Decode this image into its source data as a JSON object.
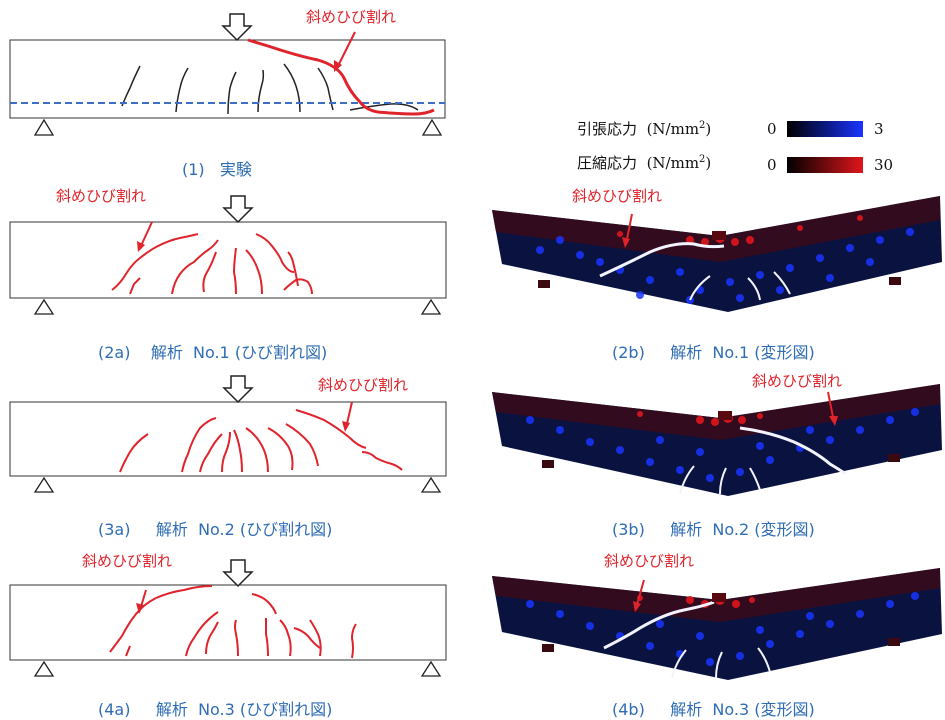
{
  "captions": {
    "c1": "(1)   実験",
    "c2a": "(2a)    解析  No.1 (ひび割れ図)",
    "c2b": "(2b)     解析  No.1 (変形図)",
    "c3a": "(3a)     解析  No.2 (ひび割れ図)",
    "c3b": "(3b)     解析  No.2 (変形図)",
    "c4a": "(4a)     解析  No.3 (ひび割れ図)",
    "c4b": "(4b)     解析  No.3 (変形図)"
  },
  "crack_label": "斜めひび割れ",
  "legend": {
    "tension_label": "引張応力",
    "compression_label": "圧縮応力",
    "unit_prefix": "(N/mm",
    "unit_sup": "2",
    "unit_suffix": ")",
    "tension_min": "0",
    "tension_max": "3",
    "compression_min": "0",
    "compression_max": "30"
  },
  "colors": {
    "caption": "#2f6db5",
    "crack": "#e0242c",
    "tension": "#1a35ff",
    "compression": "#e0161c",
    "axis_line": "#3c6fc4"
  }
}
